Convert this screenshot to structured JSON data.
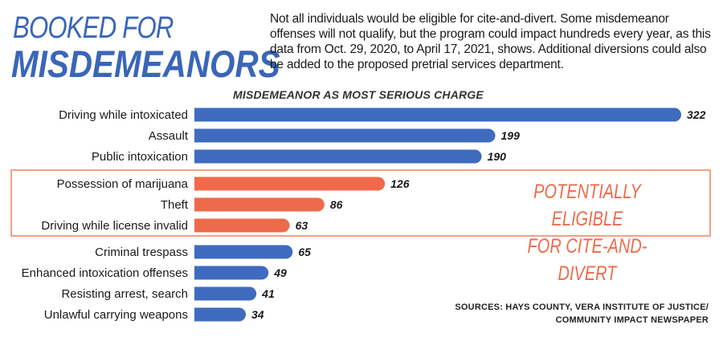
{
  "title_line1": "BOOKED FOR",
  "title_line2": "MISDEMEANORS",
  "description": "Not all individuals would be eligible for cite-and-divert. Some misdemeanor offenses will not qualify, but the program could impact hundreds every year, as this data from Oct. 29, 2020, to April 17, 2021, shows. Additional diversions could also be added to the proposed pretrial services department.",
  "eligible_line1": "POTENTIALLY ELIGIBLE",
  "eligible_line2": "FOR CITE-AND-DIVERT",
  "source_line1": "SOURCES: HAYS COUNTY, VERA INSTITUTE OF JUSTICE/",
  "source_line2": "COMMUNITY IMPACT NEWSPAPER",
  "colors": {
    "default": "#3f6bbf",
    "eligible": "#ee6a4a",
    "accent": "#3a66b8"
  },
  "chart_data": {
    "type": "bar",
    "orientation": "horizontal",
    "title": "MISDEMEANOR AS MOST SERIOUS CHARGE",
    "categories": [
      "Driving while intoxicated",
      "Assault",
      "Public intoxication",
      "Possession of marijuana",
      "Theft",
      "Driving while license invalid",
      "Criminal trespass",
      "Enhanced intoxication offenses",
      "Resisting arrest, search",
      "Unlawful carrying weapons"
    ],
    "values": [
      322,
      199,
      190,
      126,
      86,
      63,
      65,
      49,
      41,
      34
    ],
    "highlighted": [
      false,
      false,
      false,
      true,
      true,
      true,
      false,
      false,
      false,
      false
    ],
    "xlim": [
      0,
      322
    ],
    "grid": false,
    "legend": "none"
  }
}
